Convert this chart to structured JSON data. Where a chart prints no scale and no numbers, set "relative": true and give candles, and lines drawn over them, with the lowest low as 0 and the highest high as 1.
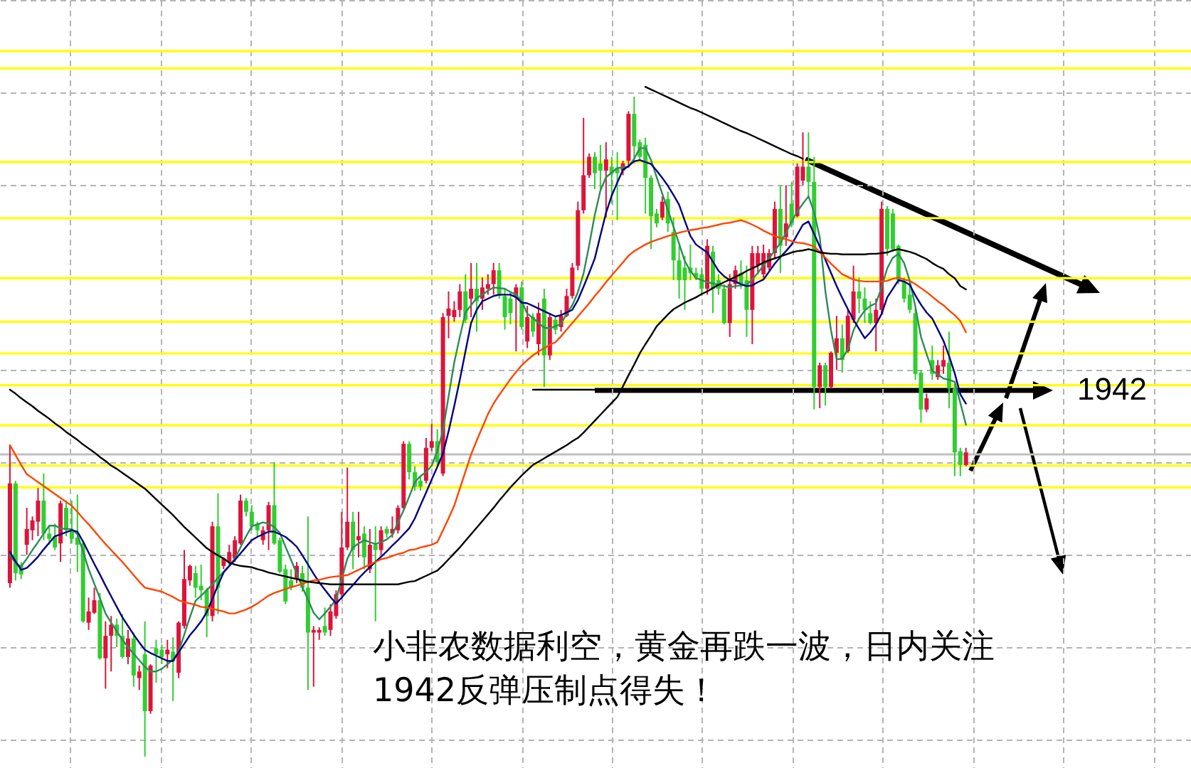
{
  "chart_data": {
    "type": "candlestick",
    "relative": true,
    "grid": true,
    "categories": [
      null,
      null,
      null,
      null,
      null,
      null,
      null,
      null,
      null,
      null,
      null,
      null,
      null,
      null,
      null,
      null,
      null,
      null,
      null,
      null,
      null,
      null,
      null,
      null,
      null,
      null,
      null,
      null,
      null,
      null,
      null,
      null,
      null,
      null,
      null,
      null,
      null,
      null,
      null,
      null,
      null,
      null,
      null,
      null,
      null,
      null,
      null,
      null,
      null,
      null,
      null,
      null,
      null,
      null,
      null,
      null,
      null,
      null,
      null,
      null,
      null,
      null,
      null,
      null,
      null,
      null,
      null,
      null,
      null,
      null,
      null,
      null,
      null,
      null,
      null,
      null,
      null,
      null,
      null,
      null,
      null,
      null,
      null,
      null,
      null,
      null,
      null,
      null,
      null,
      null,
      null,
      null,
      null,
      null,
      null,
      null,
      null,
      null,
      null,
      null,
      null,
      null,
      null,
      null,
      null,
      null,
      null,
      null,
      null,
      null,
      null,
      null,
      null,
      null,
      null,
      null,
      null,
      null,
      null,
      null,
      null,
      null,
      null,
      null,
      null,
      null,
      null,
      null,
      null,
      null,
      null,
      null,
      null,
      null,
      null,
      null,
      null,
      null,
      null,
      null,
      null,
      null,
      null,
      null,
      null,
      null,
      null,
      null,
      null,
      null,
      null,
      null,
      null,
      null,
      null,
      null,
      null,
      null,
      null,
      null,
      null,
      null,
      null,
      null,
      null,
      null,
      null,
      null,
      null,
      null,
      null
    ],
    "ohlc": [
      [
        0.263,
        0.472,
        0.256,
        0.414
      ],
      [
        0.414,
        0.418,
        0.267,
        0.278
      ],
      [
        0.289,
        0.295,
        0.269,
        0.276
      ],
      [
        0.321,
        0.377,
        0.306,
        0.345
      ],
      [
        0.343,
        0.364,
        0.328,
        0.358
      ],
      [
        0.356,
        0.407,
        0.334,
        0.388
      ],
      [
        0.388,
        0.429,
        0.328,
        0.338
      ],
      [
        0.338,
        0.349,
        0.321,
        0.33
      ],
      [
        0.334,
        0.353,
        0.313,
        0.317
      ],
      [
        0.323,
        0.388,
        0.295,
        0.384
      ],
      [
        0.377,
        0.388,
        0.334,
        0.343
      ],
      [
        0.343,
        0.388,
        0.323,
        0.33
      ],
      [
        0.332,
        0.397,
        0.28,
        0.321
      ],
      [
        0.323,
        0.328,
        0.203,
        0.205
      ],
      [
        0.203,
        0.241,
        0.192,
        0.22
      ],
      [
        0.218,
        0.256,
        0.216,
        0.237
      ],
      [
        0.237,
        0.248,
        0.147,
        0.149
      ],
      [
        0.149,
        0.205,
        0.103,
        0.183
      ],
      [
        0.183,
        0.213,
        0.129,
        0.2
      ],
      [
        0.2,
        0.209,
        0.166,
        0.183
      ],
      [
        0.183,
        0.216,
        0.149,
        0.151
      ],
      [
        0.151,
        0.192,
        0.14,
        0.179
      ],
      [
        0.179,
        0.188,
        0.106,
        0.123
      ],
      [
        0.119,
        0.138,
        0.101,
        0.129
      ],
      [
        0.155,
        0.205,
        0,
        0.069
      ],
      [
        0.069,
        0.14,
        0.065,
        0.138
      ],
      [
        0.164,
        0.177,
        0.112,
        0.155
      ],
      [
        0.162,
        0.17,
        0.14,
        0.151
      ],
      [
        0.155,
        0.177,
        0.134,
        0.162
      ],
      [
        0.159,
        0.181,
        0.084,
        0.144
      ],
      [
        0.127,
        0.205,
        0.119,
        0.203
      ],
      [
        0.198,
        0.313,
        0.194,
        0.269
      ],
      [
        0.267,
        0.291,
        0.259,
        0.289
      ],
      [
        0.278,
        0.289,
        0.241,
        0.256
      ],
      [
        0.259,
        0.291,
        0.237,
        0.252
      ],
      [
        0.252,
        0.256,
        0.181,
        0.213
      ],
      [
        0.213,
        0.356,
        0.205,
        0.349
      ],
      [
        0.349,
        0.399,
        0.216,
        0.256
      ],
      [
        0.289,
        0.302,
        0.284,
        0.3
      ],
      [
        0.295,
        0.321,
        0.291,
        0.31
      ],
      [
        0.3,
        0.334,
        0.295,
        0.328
      ],
      [
        0.323,
        0.397,
        0.321,
        0.388
      ],
      [
        0.388,
        0.392,
        0.364,
        0.371
      ],
      [
        0.371,
        0.381,
        0.343,
        0.349
      ],
      [
        0.353,
        0.356,
        0.334,
        0.343
      ],
      [
        0.328,
        0.349,
        0.321,
        0.343
      ],
      [
        0.343,
        0.386,
        0.313,
        0.381
      ],
      [
        0.381,
        0.446,
        0.321,
        0.323
      ],
      [
        0.328,
        0.332,
        0.278,
        0.28
      ],
      [
        0.284,
        0.291,
        0.231,
        0.235
      ],
      [
        0.267,
        0.284,
        0.252,
        0.256
      ],
      [
        0.269,
        0.295,
        0.263,
        0.289
      ],
      [
        0.278,
        0.289,
        0.25,
        0.256
      ],
      [
        0.256,
        0.364,
        0.101,
        0.188
      ],
      [
        0.188,
        0.198,
        0.106,
        0.192
      ],
      [
        0.188,
        0.196,
        0.177,
        0.192
      ],
      [
        0.198,
        0.226,
        0.183,
        0.188
      ],
      [
        0.192,
        0.231,
        0.183,
        0.22
      ],
      [
        0.213,
        0.252,
        0.209,
        0.246
      ],
      [
        0.246,
        0.371,
        0.241,
        0.317
      ],
      [
        0.317,
        0.438,
        0.313,
        0.356
      ],
      [
        0.356,
        0.371,
        0.284,
        0.313
      ],
      [
        0.328,
        0.371,
        0.302,
        0.334
      ],
      [
        0.338,
        0.349,
        0.284,
        0.302
      ],
      [
        0.284,
        0.345,
        0.278,
        0.321
      ],
      [
        0.321,
        0.349,
        0.205,
        0.313
      ],
      [
        0.313,
        0.349,
        0.306,
        0.343
      ],
      [
        0.345,
        0.349,
        0.332,
        0.338
      ],
      [
        0.338,
        0.364,
        0.332,
        0.345
      ],
      [
        0.343,
        0.381,
        0.338,
        0.377
      ],
      [
        0.377,
        0.478,
        0.375,
        0.474
      ],
      [
        0.474,
        0.478,
        0.42,
        0.431
      ],
      [
        0.431,
        0.44,
        0.403,
        0.409
      ],
      [
        0.418,
        0.425,
        0.403,
        0.409
      ],
      [
        0.418,
        0.483,
        0.414,
        0.468
      ],
      [
        0.468,
        0.504,
        0.463,
        0.478
      ],
      [
        0.478,
        0.496,
        0.442,
        0.446
      ],
      [
        0.429,
        0.672,
        0.425,
        0.666
      ],
      [
        0.668,
        0.705,
        0.634,
        0.679
      ],
      [
        0.666,
        0.69,
        0.659,
        0.677
      ],
      [
        0.677,
        0.716,
        0.666,
        0.705
      ],
      [
        0.705,
        0.731,
        0.657,
        0.662
      ],
      [
        0.694,
        0.748,
        0.666,
        0.709
      ],
      [
        0.709,
        0.748,
        0.644,
        0.69
      ],
      [
        0.694,
        0.726,
        0.677,
        0.711
      ],
      [
        0.709,
        0.731,
        0.7,
        0.716
      ],
      [
        0.716,
        0.748,
        0.7,
        0.737
      ],
      [
        0.737,
        0.748,
        0.694,
        0.698
      ],
      [
        0.698,
        0.709,
        0.647,
        0.666
      ],
      [
        0.694,
        0.705,
        0.655,
        0.672
      ],
      [
        0.698,
        0.716,
        0.614,
        0.711
      ],
      [
        0.711,
        0.72,
        0.647,
        0.651
      ],
      [
        0.629,
        0.683,
        0.619,
        0.666
      ],
      [
        0.666,
        0.672,
        0.636,
        0.644
      ],
      [
        0.625,
        0.688,
        0.608,
        0.672
      ],
      [
        0.694,
        0.709,
        0.56,
        0.608
      ],
      [
        0.608,
        0.672,
        0.601,
        0.666
      ],
      [
        0.662,
        0.668,
        0.64,
        0.647
      ],
      [
        0.651,
        0.677,
        0.644,
        0.668
      ],
      [
        0.668,
        0.709,
        0.666,
        0.698
      ],
      [
        0.698,
        0.748,
        0.694,
        0.741
      ],
      [
        0.744,
        0.841,
        0.737,
        0.828
      ],
      [
        0.828,
        0.968,
        0.823,
        0.881
      ],
      [
        0.881,
        0.914,
        0.877,
        0.909
      ],
      [
        0.909,
        0.916,
        0.86,
        0.884
      ],
      [
        0.899,
        0.927,
        0.86,
        0.888
      ],
      [
        0.888,
        0.931,
        0.817,
        0.905
      ],
      [
        0.894,
        0.909,
        0.838,
        0.884
      ],
      [
        0.892,
        0.916,
        0.813,
        0.884
      ],
      [
        0.888,
        0.903,
        0.881,
        0.899
      ],
      [
        0.903,
        0.978,
        0.892,
        0.974
      ],
      [
        0.974,
        1,
        0.899,
        0.925
      ],
      [
        0.931,
        0.935,
        0.903,
        0.909
      ],
      [
        0.927,
        0.938,
        0.823,
        0.877
      ],
      [
        0.877,
        0.881,
        0.769,
        0.819
      ],
      [
        0.823,
        0.83,
        0.802,
        0.808
      ],
      [
        0.817,
        0.849,
        0.813,
        0.841
      ],
      [
        0.845,
        0.856,
        0.795,
        0.808
      ],
      [
        0.795,
        0.817,
        0.722,
        0.752
      ],
      [
        0.752,
        0.774,
        0.694,
        0.722
      ],
      [
        0.741,
        0.759,
        0.677,
        0.722
      ],
      [
        0.741,
        0.776,
        0.722,
        0.733
      ],
      [
        0.733,
        0.741,
        0.722,
        0.726
      ],
      [
        0.731,
        0.741,
        0.698,
        0.709
      ],
      [
        0.709,
        0.784,
        0.7,
        0.774
      ],
      [
        0.765,
        0.774,
        0.672,
        0.709
      ],
      [
        0.722,
        0.731,
        0.7,
        0.709
      ],
      [
        0.709,
        0.716,
        0.655,
        0.657
      ],
      [
        0.657,
        0.731,
        0.636,
        0.716
      ],
      [
        0.716,
        0.744,
        0.709,
        0.737
      ],
      [
        0.733,
        0.752,
        0.709,
        0.716
      ],
      [
        0.722,
        0.744,
        0.636,
        0.677
      ],
      [
        0.677,
        0.774,
        0.625,
        0.763
      ],
      [
        0.744,
        0.774,
        0.731,
        0.763
      ],
      [
        0.731,
        0.776,
        0.726,
        0.763
      ],
      [
        0.741,
        0.769,
        0.737,
        0.763
      ],
      [
        0.763,
        0.841,
        0.754,
        0.83
      ],
      [
        0.83,
        0.866,
        0.733,
        0.774
      ],
      [
        0.787,
        0.866,
        0.774,
        0.808
      ],
      [
        0.838,
        0.871,
        0.802,
        0.808
      ],
      [
        0.819,
        0.899,
        0.817,
        0.894
      ],
      [
        0.873,
        0.946,
        0.866,
        0.894
      ],
      [
        0.894,
        0.946,
        0.849,
        0.871
      ],
      [
        0.871,
        0.909,
        0.526,
        0.56
      ],
      [
        0.56,
        0.597,
        0.528,
        0.593
      ],
      [
        0.593,
        0.597,
        0.532,
        0.56
      ],
      [
        0.56,
        0.614,
        0.558,
        0.612
      ],
      [
        0.612,
        0.668,
        0.586,
        0.634
      ],
      [
        0.634,
        0.655,
        0.582,
        0.601
      ],
      [
        0.614,
        0.677,
        0.612,
        0.668
      ],
      [
        0.662,
        0.744,
        0.657,
        0.705
      ],
      [
        0.705,
        0.726,
        0.672,
        0.694
      ],
      [
        0.694,
        0.711,
        0.657,
        0.677
      ],
      [
        0.672,
        0.69,
        0.655,
        0.657
      ],
      [
        0.657,
        0.694,
        0.614,
        0.677
      ],
      [
        0.677,
        0.841,
        0.672,
        0.83
      ],
      [
        0.83,
        0.834,
        0.759,
        0.769
      ],
      [
        0.823,
        0.83,
        0.765,
        0.769
      ],
      [
        0.774,
        0.776,
        0.716,
        0.722
      ],
      [
        0.72,
        0.726,
        0.688,
        0.694
      ],
      [
        0.7,
        0.72,
        0.672,
        0.677
      ],
      [
        0.672,
        0.679,
        0.571,
        0.58
      ],
      [
        0.582,
        0.586,
        0.506,
        0.526
      ],
      [
        0.526,
        0.55,
        0.522,
        0.543
      ],
      [
        0.601,
        0.623,
        0.571,
        0.58
      ],
      [
        0.575,
        0.601,
        0.571,
        0.593
      ],
      [
        0.591,
        0.623,
        0.58,
        0.601
      ],
      [
        0.597,
        0.644,
        0.528,
        0.558
      ],
      [
        0.558,
        0.565,
        0.425,
        0.461
      ],
      [
        0.463,
        0.468,
        0.425,
        0.442
      ],
      [
        0.442,
        0.468,
        0.44,
        0.461
      ]
    ],
    "colors": [
      "#dc143c",
      "#32cd32",
      "#32cd32",
      "#dc143c",
      "#dc143c",
      "#dc143c",
      "#32cd32",
      "#32cd32",
      "#32cd32",
      "#dc143c",
      "#32cd32",
      "#32cd32",
      "#32cd32",
      "#32cd32",
      "#dc143c",
      "#dc143c",
      "#32cd32",
      "#dc143c",
      "#dc143c",
      "#32cd32",
      "#32cd32",
      "#dc143c",
      "#32cd32",
      "#dc143c",
      "#32cd32",
      "#dc143c",
      "#32cd32",
      "#32cd32",
      "#dc143c",
      "#32cd32",
      "#dc143c",
      "#dc143c",
      "#dc143c",
      "#32cd32",
      "#32cd32",
      "#32cd32",
      "#dc143c",
      "#32cd32",
      "#dc143c",
      "#dc143c",
      "#dc143c",
      "#dc143c",
      "#32cd32",
      "#32cd32",
      "#32cd32",
      "#dc143c",
      "#dc143c",
      "#32cd32",
      "#32cd32",
      "#32cd32",
      "#32cd32",
      "#dc143c",
      "#32cd32",
      "#32cd32",
      "#dc143c",
      "#dc143c",
      "#32cd32",
      "#dc143c",
      "#dc143c",
      "#dc143c",
      "#dc143c",
      "#32cd32",
      "#dc143c",
      "#32cd32",
      "#dc143c",
      "#32cd32",
      "#dc143c",
      "#32cd32",
      "#dc143c",
      "#dc143c",
      "#dc143c",
      "#32cd32",
      "#32cd32",
      "#32cd32",
      "#dc143c",
      "#dc143c",
      "#32cd32",
      "#dc143c",
      "#dc143c",
      "#dc143c",
      "#dc143c",
      "#32cd32",
      "#dc143c",
      "#32cd32",
      "#dc143c",
      "#dc143c",
      "#dc143c",
      "#32cd32",
      "#32cd32",
      "#32cd32",
      "#dc143c",
      "#32cd32",
      "#dc143c",
      "#32cd32",
      "#dc143c",
      "#32cd32",
      "#dc143c",
      "#32cd32",
      "#dc143c",
      "#dc143c",
      "#dc143c",
      "#dc143c",
      "#dc143c",
      "#dc143c",
      "#32cd32",
      "#32cd32",
      "#dc143c",
      "#32cd32",
      "#32cd32",
      "#dc143c",
      "#dc143c",
      "#32cd32",
      "#32cd32",
      "#32cd32",
      "#32cd32",
      "#32cd32",
      "#dc143c",
      "#32cd32",
      "#32cd32",
      "#32cd32",
      "#32cd32",
      "#32cd32",
      "#32cd32",
      "#32cd32",
      "#dc143c",
      "#32cd32",
      "#32cd32",
      "#32cd32",
      "#dc143c",
      "#dc143c",
      "#32cd32",
      "#32cd32",
      "#dc143c",
      "#dc143c",
      "#dc143c",
      "#dc143c",
      "#dc143c",
      "#32cd32",
      "#dc143c",
      "#32cd32",
      "#dc143c",
      "#dc143c",
      "#32cd32",
      "#32cd32",
      "#dc143c",
      "#32cd32",
      "#dc143c",
      "#dc143c",
      "#32cd32",
      "#dc143c",
      "#dc143c",
      "#32cd32",
      "#32cd32",
      "#32cd32",
      "#dc143c",
      "#dc143c",
      "#32cd32",
      "#32cd32",
      "#32cd32",
      "#32cd32",
      "#32cd32",
      "#32cd32",
      "#32cd32",
      "#dc143c",
      "#32cd32",
      "#dc143c",
      "#dc143c",
      "#32cd32",
      "#32cd32",
      "#32cd32",
      "#dc143c"
    ],
    "series": [
      {
        "type": "line",
        "color": "#2e8b57",
        "values": [
          0.306,
          0.293,
          0.288,
          0.3,
          0.313,
          0.325,
          0.338,
          0.35,
          0.35,
          0.346,
          0.345,
          0.345,
          0.337,
          0.311,
          0.284,
          0.262,
          0.24,
          0.217,
          0.203,
          0.19,
          0.177,
          0.166,
          0.156,
          0.146,
          0.136,
          0.129,
          0.129,
          0.133,
          0.14,
          0.147,
          0.159,
          0.185,
          0.211,
          0.236,
          0.244,
          0.252,
          0.261,
          0.271,
          0.28,
          0.289,
          0.3,
          0.317,
          0.334,
          0.349,
          0.352,
          0.355,
          0.353,
          0.348,
          0.339,
          0.318,
          0.298,
          0.277,
          0.257,
          0.238,
          0.218,
          0.208,
          0.217,
          0.227,
          0.238,
          0.269,
          0.3,
          0.317,
          0.323,
          0.328,
          0.325,
          0.322,
          0.325,
          0.329,
          0.336,
          0.355,
          0.373,
          0.394,
          0.416,
          0.425,
          0.431,
          0.441,
          0.463,
          0.494,
          0.546,
          0.597,
          0.636,
          0.673,
          0.684,
          0.695,
          0.7,
          0.706,
          0.711,
          0.71,
          0.709,
          0.704,
          0.7,
          0.69,
          0.671,
          0.665,
          0.657,
          0.65,
          0.649,
          0.652,
          0.656,
          0.671,
          0.684,
          0.704,
          0.732,
          0.775,
          0.821,
          0.858,
          0.878,
          0.885,
          0.892,
          0.893,
          0.894,
          0.906,
          0.922,
          0.922,
          0.904,
          0.878,
          0.853,
          0.828,
          0.803,
          0.777,
          0.751,
          0.736,
          0.725,
          0.722,
          0.719,
          0.717,
          0.715,
          0.713,
          0.711,
          0.713,
          0.714,
          0.715,
          0.723,
          0.733,
          0.744,
          0.755,
          0.767,
          0.778,
          0.794,
          0.811,
          0.826,
          0.838,
          0.849,
          0.825,
          0.787,
          0.705,
          0.646,
          0.602,
          0.603,
          0.617,
          0.646,
          0.664,
          0.676,
          0.683,
          0.687,
          0.711,
          0.74,
          0.756,
          0.762,
          0.748,
          0.721,
          0.682,
          0.636,
          0.61,
          0.585,
          0.579,
          0.573,
          0.571,
          0.568,
          0.536,
          0.503
        ]
      },
      {
        "type": "line",
        "color": "#000080",
        "values": [
          0.31,
          0.296,
          0.283,
          0.286,
          0.294,
          0.303,
          0.314,
          0.324,
          0.334,
          0.337,
          0.34,
          0.343,
          0.341,
          0.326,
          0.309,
          0.292,
          0.276,
          0.259,
          0.243,
          0.227,
          0.211,
          0.198,
          0.185,
          0.173,
          0.162,
          0.157,
          0.153,
          0.149,
          0.145,
          0.145,
          0.158,
          0.171,
          0.184,
          0.194,
          0.205,
          0.219,
          0.239,
          0.26,
          0.279,
          0.289,
          0.298,
          0.308,
          0.318,
          0.328,
          0.333,
          0.337,
          0.341,
          0.341,
          0.337,
          0.333,
          0.326,
          0.318,
          0.305,
          0.291,
          0.277,
          0.264,
          0.253,
          0.242,
          0.232,
          0.241,
          0.251,
          0.26,
          0.27,
          0.279,
          0.287,
          0.295,
          0.303,
          0.311,
          0.32,
          0.328,
          0.337,
          0.346,
          0.361,
          0.381,
          0.4,
          0.42,
          0.439,
          0.459,
          0.493,
          0.531,
          0.571,
          0.614,
          0.657,
          0.677,
          0.69,
          0.694,
          0.698,
          0.7,
          0.7,
          0.7,
          0.696,
          0.688,
          0.687,
          0.683,
          0.679,
          0.675,
          0.671,
          0.667,
          0.669,
          0.673,
          0.677,
          0.692,
          0.712,
          0.733,
          0.755,
          0.79,
          0.824,
          0.85,
          0.87,
          0.889,
          0.895,
          0.902,
          0.904,
          0.901,
          0.898,
          0.888,
          0.877,
          0.865,
          0.851,
          0.836,
          0.812,
          0.789,
          0.776,
          0.77,
          0.764,
          0.75,
          0.736,
          0.728,
          0.722,
          0.72,
          0.716,
          0.713,
          0.714,
          0.719,
          0.723,
          0.735,
          0.747,
          0.757,
          0.766,
          0.776,
          0.791,
          0.806,
          0.811,
          0.792,
          0.773,
          0.753,
          0.733,
          0.713,
          0.695,
          0.678,
          0.662,
          0.648,
          0.634,
          0.643,
          0.655,
          0.671,
          0.696,
          0.709,
          0.722,
          0.72,
          0.715,
          0.699,
          0.685,
          0.673,
          0.664,
          0.647,
          0.63,
          0.607,
          0.581,
          0.549,
          0.535
        ]
      },
      {
        "type": "line",
        "color": "#ff4500",
        "values": [
          0.472,
          0.457,
          0.442,
          0.428,
          0.422,
          0.416,
          0.41,
          0.404,
          0.398,
          0.392,
          0.386,
          0.38,
          0.371,
          0.361,
          0.352,
          0.342,
          0.332,
          0.322,
          0.313,
          0.304,
          0.295,
          0.285,
          0.275,
          0.265,
          0.256,
          0.254,
          0.252,
          0.25,
          0.246,
          0.242,
          0.237,
          0.234,
          0.232,
          0.23,
          0.227,
          0.226,
          0.224,
          0.222,
          0.22,
          0.217,
          0.217,
          0.22,
          0.223,
          0.227,
          0.232,
          0.238,
          0.244,
          0.248,
          0.251,
          0.254,
          0.257,
          0.259,
          0.262,
          0.265,
          0.267,
          0.268,
          0.27,
          0.272,
          0.273,
          0.274,
          0.275,
          0.279,
          0.283,
          0.287,
          0.291,
          0.295,
          0.299,
          0.301,
          0.304,
          0.307,
          0.309,
          0.313,
          0.314,
          0.317,
          0.319,
          0.321,
          0.325,
          0.343,
          0.361,
          0.38,
          0.406,
          0.432,
          0.458,
          0.479,
          0.499,
          0.519,
          0.535,
          0.548,
          0.56,
          0.572,
          0.583,
          0.593,
          0.601,
          0.608,
          0.614,
          0.619,
          0.624,
          0.628,
          0.637,
          0.647,
          0.657,
          0.667,
          0.677,
          0.687,
          0.698,
          0.708,
          0.719,
          0.729,
          0.739,
          0.749,
          0.759,
          0.766,
          0.771,
          0.776,
          0.78,
          0.783,
          0.786,
          0.789,
          0.791,
          0.794,
          0.796,
          0.798,
          0.799,
          0.801,
          0.802,
          0.804,
          0.806,
          0.808,
          0.809,
          0.811,
          0.813,
          0.81,
          0.806,
          0.802,
          0.797,
          0.793,
          0.789,
          0.786,
          0.784,
          0.781,
          0.779,
          0.778,
          0.776,
          0.773,
          0.765,
          0.756,
          0.747,
          0.739,
          0.731,
          0.727,
          0.723,
          0.721,
          0.72,
          0.72,
          0.72,
          0.72,
          0.721,
          0.724,
          0.726,
          0.723,
          0.721,
          0.716,
          0.71,
          0.704,
          0.697,
          0.69,
          0.684,
          0.676,
          0.669,
          0.66,
          0.643
        ]
      },
      {
        "type": "line",
        "color": "#000000",
        "values": [
          0.556,
          0.55,
          0.543,
          0.537,
          0.531,
          0.524,
          0.518,
          0.512,
          0.505,
          0.499,
          0.492,
          0.486,
          0.48,
          0.473,
          0.467,
          0.461,
          0.454,
          0.448,
          0.441,
          0.436,
          0.43,
          0.424,
          0.418,
          0.412,
          0.406,
          0.398,
          0.39,
          0.382,
          0.374,
          0.366,
          0.357,
          0.348,
          0.34,
          0.332,
          0.324,
          0.316,
          0.31,
          0.305,
          0.3,
          0.294,
          0.291,
          0.289,
          0.288,
          0.287,
          0.284,
          0.282,
          0.279,
          0.277,
          0.275,
          0.273,
          0.271,
          0.269,
          0.267,
          0.265,
          0.264,
          0.263,
          0.262,
          0.261,
          0.261,
          0.261,
          0.261,
          0.261,
          0.261,
          0.261,
          0.261,
          0.261,
          0.261,
          0.261,
          0.261,
          0.261,
          0.263,
          0.265,
          0.266,
          0.27,
          0.274,
          0.278,
          0.282,
          0.29,
          0.299,
          0.308,
          0.317,
          0.327,
          0.337,
          0.347,
          0.357,
          0.367,
          0.377,
          0.388,
          0.398,
          0.408,
          0.417,
          0.426,
          0.434,
          0.442,
          0.447,
          0.452,
          0.457,
          0.462,
          0.467,
          0.472,
          0.478,
          0.483,
          0.491,
          0.5,
          0.509,
          0.518,
          0.527,
          0.536,
          0.545,
          0.561,
          0.578,
          0.594,
          0.611,
          0.625,
          0.638,
          0.652,
          0.661,
          0.67,
          0.678,
          0.683,
          0.688,
          0.692,
          0.696,
          0.701,
          0.705,
          0.71,
          0.715,
          0.719,
          0.723,
          0.727,
          0.731,
          0.736,
          0.74,
          0.744,
          0.749,
          0.752,
          0.755,
          0.758,
          0.761,
          0.764,
          0.766,
          0.767,
          0.769,
          0.767,
          0.764,
          0.763,
          0.762,
          0.762,
          0.761,
          0.761,
          0.761,
          0.761,
          0.761,
          0.762,
          0.762,
          0.763,
          0.764,
          0.767,
          0.769,
          0.767,
          0.765,
          0.762,
          0.758,
          0.754,
          0.748,
          0.743,
          0.739,
          0.731,
          0.725,
          0.713,
          0.708
        ]
      },
      {
        "type": "line",
        "color": "#000000",
        "values": [
          null,
          null,
          null,
          null,
          null,
          null,
          null,
          null,
          null,
          null,
          null,
          null,
          null,
          null,
          null,
          null,
          null,
          null,
          null,
          null,
          null,
          null,
          null,
          null,
          null,
          null,
          null,
          null,
          null,
          null,
          null,
          null,
          null,
          null,
          null,
          null,
          null,
          null,
          null,
          null,
          null,
          null,
          null,
          null,
          null,
          null,
          null,
          null,
          null,
          null,
          null,
          null,
          null,
          null,
          null,
          null,
          null,
          null,
          null,
          null,
          null,
          null,
          null,
          null,
          null,
          null,
          null,
          null,
          null,
          null,
          null,
          null,
          null,
          null,
          null,
          null,
          null,
          null,
          null,
          null,
          null,
          null,
          null,
          null,
          null,
          null,
          null,
          null,
          null,
          null,
          null,
          null,
          null,
          null,
          null,
          null,
          null,
          null,
          null,
          null,
          null,
          null,
          null,
          null,
          null,
          null,
          null,
          null,
          null,
          null,
          null,
          null,
          null,
          1.015,
          1.011,
          1.007,
          1.003,
          0.999,
          0.995,
          0.991,
          0.987,
          0.983,
          0.98,
          0.976,
          0.972,
          0.968,
          0.964,
          0.96,
          0.956,
          0.952,
          0.948,
          0.945,
          0.941,
          0.937,
          0.933,
          0.929,
          0.925,
          0.921,
          0.917,
          0.913,
          0.91,
          0.906,
          null,
          null,
          null,
          null,
          null,
          null,
          null,
          null,
          null,
          null,
          null,
          null,
          null,
          null,
          null,
          null,
          null,
          null,
          null,
          null,
          null,
          null,
          null,
          null,
          null,
          null,
          null,
          null,
          null
        ]
      },
      {
        "type": "line",
        "color": "#000000",
        "values": [
          null,
          null,
          null,
          null,
          null,
          null,
          null,
          null,
          null,
          null,
          null,
          null,
          null,
          null,
          null,
          null,
          null,
          null,
          null,
          null,
          null,
          null,
          null,
          null,
          null,
          null,
          null,
          null,
          null,
          null,
          null,
          null,
          null,
          null,
          null,
          null,
          null,
          null,
          null,
          null,
          null,
          null,
          null,
          null,
          null,
          null,
          null,
          null,
          null,
          null,
          null,
          null,
          null,
          null,
          null,
          null,
          null,
          null,
          null,
          null,
          null,
          null,
          null,
          null,
          null,
          null,
          null,
          null,
          null,
          null,
          null,
          null,
          null,
          null,
          null,
          null,
          null,
          null,
          null,
          null,
          null,
          null,
          null,
          null,
          null,
          null,
          null,
          null,
          null,
          null,
          null,
          null,
          null,
          0.556,
          0.556,
          0.556,
          0.556,
          0.556,
          0.556,
          0.556,
          0.556,
          0.556,
          0.556,
          0.556,
          0.556,
          null,
          null,
          null,
          null,
          null,
          null,
          null,
          null,
          null,
          null,
          null,
          null,
          null,
          null,
          null,
          null,
          null,
          null,
          null,
          null,
          null,
          null,
          null,
          null,
          null,
          null,
          null,
          null,
          null,
          null,
          null,
          null,
          null,
          null,
          null,
          null,
          null,
          null,
          null,
          null,
          null,
          null,
          null,
          null,
          null,
          null,
          null,
          null,
          null,
          null,
          null,
          null,
          null,
          null,
          null,
          null,
          null,
          null,
          null,
          null,
          null,
          null,
          null,
          null,
          null,
          null
        ]
      }
    ],
    "ref_lines": [
      {
        "axis": "y",
        "value": 1.069,
        "color": "#ffff00"
      },
      {
        "axis": "y",
        "value": 1.043,
        "color": "#ffff00"
      },
      {
        "axis": "y",
        "value": 0.901,
        "color": "#ffff00"
      },
      {
        "axis": "y",
        "value": 0.816,
        "color": "#ffff00"
      },
      {
        "axis": "y",
        "value": 0.725,
        "color": "#ffff00"
      },
      {
        "axis": "y",
        "value": 0.659,
        "color": "#ffff00"
      },
      {
        "axis": "y",
        "value": 0.611,
        "color": "#ffff00"
      },
      {
        "axis": "y",
        "value": 0.563,
        "color": "#ffff00"
      },
      {
        "axis": "y",
        "value": 0.502,
        "color": "#ffff00"
      },
      {
        "axis": "y",
        "value": 0.458,
        "color": "#c0c0c0"
      },
      {
        "axis": "y",
        "value": 0.441,
        "color": "#ffff00"
      },
      {
        "axis": "y",
        "value": 0.408,
        "color": "#ffff00"
      }
    ],
    "annotations": [
      {
        "text": "1942",
        "y": 0.556
      },
      "小非农数据利空，黄金再跌一波，日内关注1942反弹压制点得失！"
    ]
  }
}
